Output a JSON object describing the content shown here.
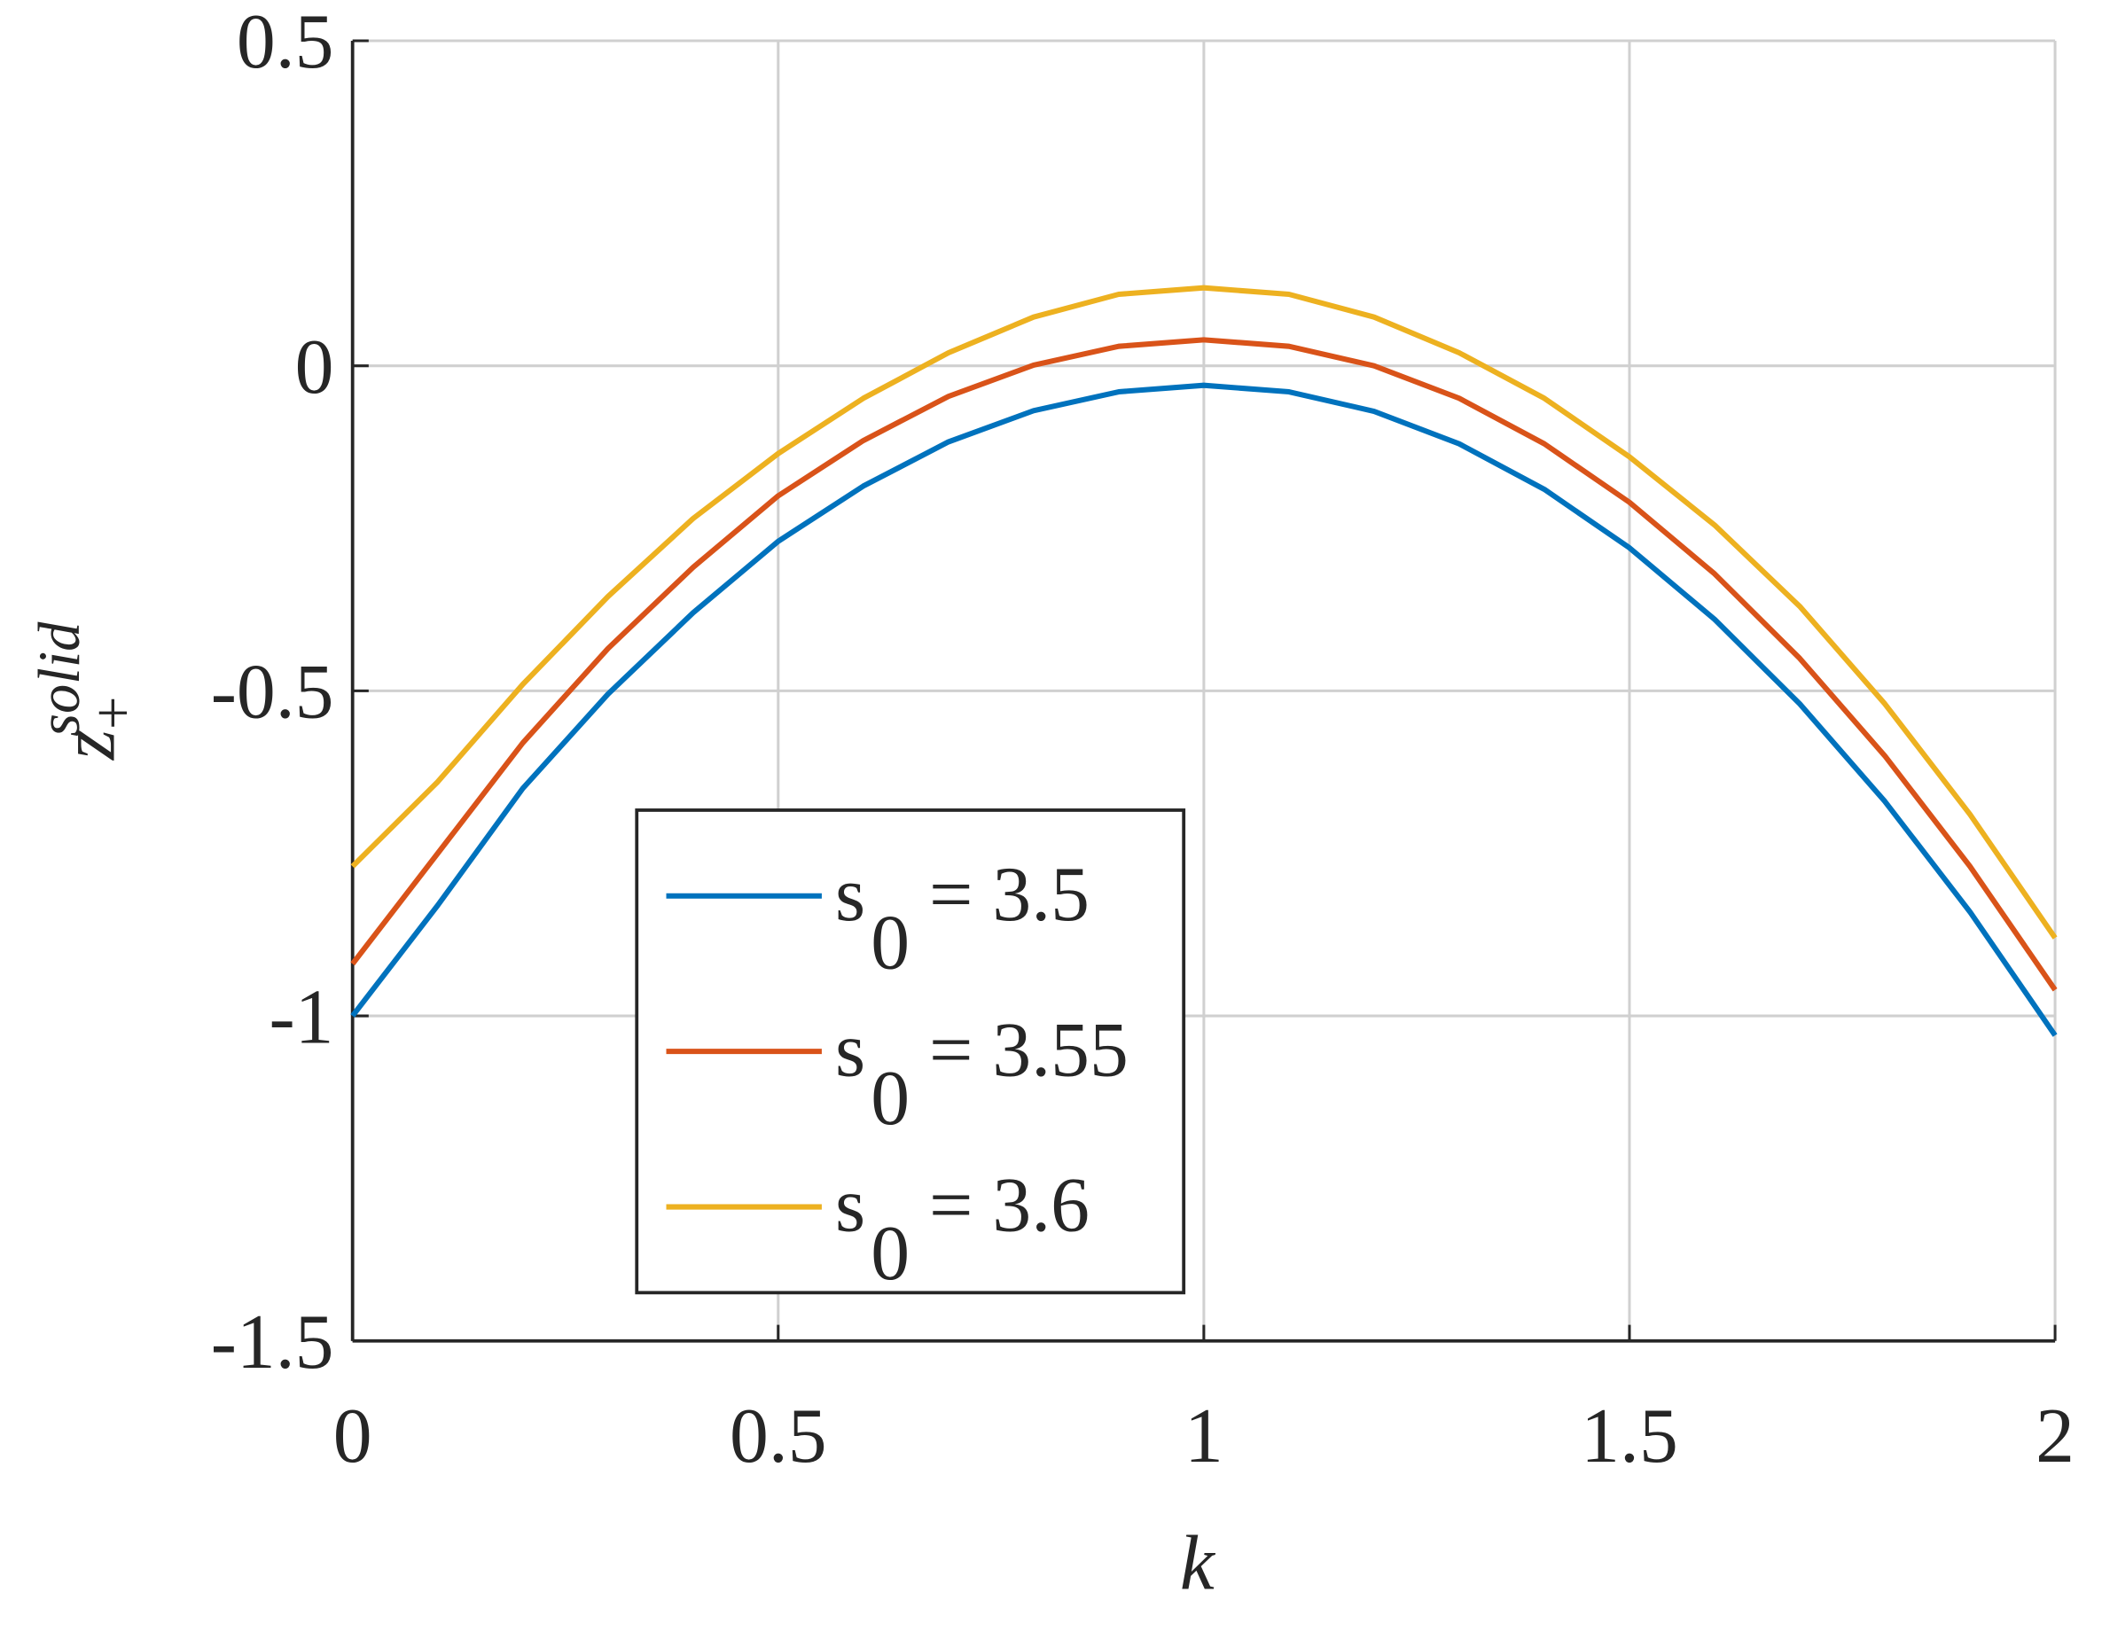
{
  "chart_data": {
    "type": "line",
    "xlabel": "k",
    "ylabel": {
      "base": "z",
      "sub": "+",
      "sup": "solid"
    },
    "x": [
      0,
      0.1,
      0.2,
      0.3,
      0.4,
      0.5,
      0.6,
      0.7,
      0.8,
      0.9,
      1.0,
      1.1,
      1.2,
      1.3,
      1.4,
      1.5,
      1.6,
      1.7,
      1.8,
      1.9,
      2.0
    ],
    "series": [
      {
        "name": "s0 = 3.5",
        "color": "#0072bd",
        "values": [
          -1.0,
          -0.83,
          -0.65,
          -0.505,
          -0.38,
          -0.27,
          -0.185,
          -0.117,
          -0.069,
          -0.04,
          -0.03,
          -0.04,
          -0.07,
          -0.12,
          -0.19,
          -0.28,
          -0.39,
          -0.52,
          -0.67,
          -0.84,
          -1.03
        ]
      },
      {
        "name": "s0 = 3.55",
        "color": "#d95319",
        "values": [
          -0.92,
          -0.75,
          -0.58,
          -0.435,
          -0.31,
          -0.2,
          -0.115,
          -0.047,
          0.001,
          0.03,
          0.04,
          0.03,
          0.0,
          -0.05,
          -0.12,
          -0.21,
          -0.32,
          -0.45,
          -0.6,
          -0.77,
          -0.96
        ]
      },
      {
        "name": "s0 = 3.6",
        "color": "#edb120",
        "values": [
          -0.77,
          -0.64,
          -0.49,
          -0.355,
          -0.235,
          -0.135,
          -0.05,
          0.02,
          0.075,
          0.11,
          0.12,
          0.11,
          0.075,
          0.02,
          -0.05,
          -0.14,
          -0.245,
          -0.37,
          -0.52,
          -0.69,
          -0.88
        ]
      }
    ],
    "xlim": [
      0,
      2
    ],
    "xticks": [
      0,
      0.5,
      1,
      1.5,
      2
    ],
    "ylim": [
      -1.5,
      0.5
    ],
    "yticks": [
      -1.5,
      -1,
      -0.5,
      0,
      0.5
    ],
    "grid": true,
    "legend": "lower-center"
  }
}
